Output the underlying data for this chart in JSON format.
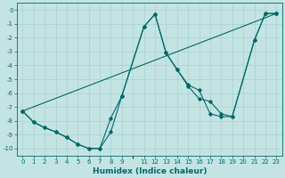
{
  "xlabel": "Humidex (Indice chaleur)",
  "bg_color": "#c4e4e4",
  "grid_color": "#a8d0d0",
  "line_color": "#006868",
  "xlim": [
    -0.5,
    23.5
  ],
  "ylim": [
    -10.5,
    0.5
  ],
  "xtick_positions": [
    0,
    1,
    2,
    3,
    4,
    5,
    6,
    7,
    8,
    9,
    11,
    12,
    13,
    14,
    15,
    16,
    17,
    18,
    19,
    20,
    21,
    22,
    23
  ],
  "xtick_labels": [
    "0",
    "1",
    "2",
    "3",
    "4",
    "5",
    "6",
    "7",
    "8",
    "9",
    "11",
    "12",
    "13",
    "14",
    "15",
    "16",
    "17",
    "18",
    "19",
    "20",
    "21",
    "22",
    "23"
  ],
  "ytick_positions": [
    0,
    -1,
    -2,
    -3,
    -4,
    -5,
    -6,
    -7,
    -8,
    -9,
    -10
  ],
  "ytick_labels": [
    "0",
    "-1",
    "-2",
    "-3",
    "-4",
    "-5",
    "-6",
    "-7",
    "-8",
    "-9",
    "-10"
  ],
  "line1_x": [
    0,
    1,
    2,
    3,
    4,
    5,
    6,
    7,
    8,
    9,
    11,
    12,
    13,
    14,
    15,
    16,
    17,
    18,
    19,
    21,
    22,
    23
  ],
  "line1_y": [
    -7.3,
    -8.1,
    -8.5,
    -8.8,
    -9.2,
    -9.7,
    -10.0,
    -10.0,
    -8.8,
    -6.2,
    -1.2,
    -0.3,
    -3.1,
    -4.3,
    -5.4,
    -5.8,
    -7.5,
    -7.7,
    -7.7,
    -2.2,
    -0.25,
    -0.25
  ],
  "line2_x": [
    0,
    1,
    2,
    3,
    4,
    5,
    6,
    7,
    8,
    9,
    11,
    12,
    13,
    14,
    15,
    16,
    17,
    18,
    19,
    21,
    22,
    23
  ],
  "line2_y": [
    -7.3,
    -8.1,
    -8.5,
    -8.8,
    -9.2,
    -9.7,
    -10.0,
    -10.0,
    -7.8,
    -6.2,
    -1.2,
    -0.3,
    -3.1,
    -4.3,
    -5.5,
    -6.4,
    -6.6,
    -7.5,
    -7.7,
    -2.2,
    -0.25,
    -0.25
  ],
  "line3_x": [
    0,
    23
  ],
  "line3_y": [
    -7.3,
    -0.25
  ],
  "marker": "D",
  "markersize": 1.8,
  "linewidth": 0.8,
  "label_fontsize": 6.5,
  "tick_fontsize": 5.0
}
